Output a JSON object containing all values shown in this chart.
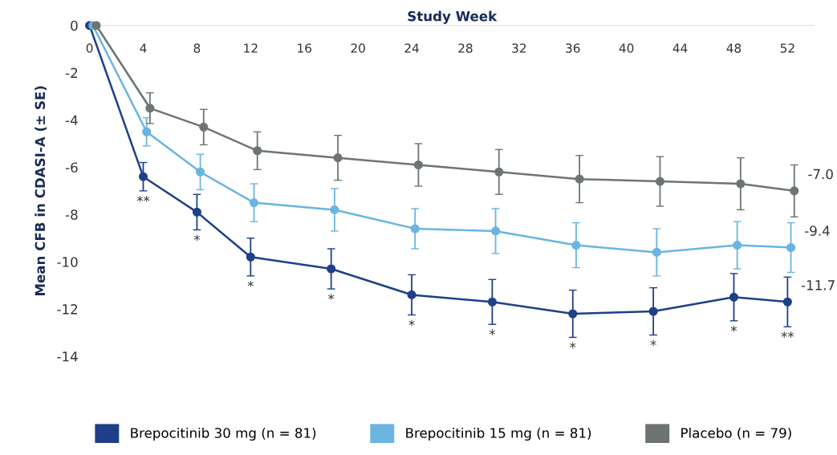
{
  "chart_data": {
    "type": "line",
    "xlabel": "Study Week",
    "ylabel": "Mean CFB in CDASI-A (± SE)",
    "xlim": [
      0,
      54
    ],
    "xticks": [
      0,
      4,
      8,
      12,
      16,
      20,
      24,
      28,
      32,
      36,
      40,
      44,
      48,
      52
    ],
    "ylim": [
      -14,
      0
    ],
    "yticks": [
      0,
      -2,
      -4,
      -6,
      -8,
      -10,
      -12,
      -14
    ],
    "series": [
      {
        "name": "Brepocitinib 30 mg (n = 81)",
        "color": "#1f3f8a",
        "x": [
          0,
          4,
          8,
          12,
          18,
          24,
          30,
          36,
          42,
          48,
          52
        ],
        "values": [
          0,
          -6.4,
          -7.9,
          -9.8,
          -10.3,
          -11.4,
          -11.7,
          -12.2,
          -12.1,
          -11.5,
          -11.7
        ],
        "errors": [
          null,
          0.6,
          0.75,
          0.8,
          0.85,
          0.85,
          0.95,
          1.0,
          1.0,
          1.0,
          1.05
        ]
      },
      {
        "name": "Brepocitinib 15 mg (n = 81)",
        "color": "#6ab4e0",
        "x": [
          0.25,
          4.25,
          8.25,
          12.25,
          18.25,
          24.25,
          30.25,
          36.25,
          42.25,
          48.25,
          52.25
        ],
        "values": [
          0,
          -4.5,
          -6.2,
          -7.5,
          -7.8,
          -8.6,
          -8.7,
          -9.3,
          -9.6,
          -9.3,
          -9.4
        ],
        "errors": [
          null,
          0.6,
          0.75,
          0.8,
          0.9,
          0.85,
          0.95,
          0.95,
          1.0,
          1.0,
          1.05
        ]
      },
      {
        "name": "Placebo (n = 79)",
        "color": "#6e7570",
        "x": [
          0.5,
          4.5,
          8.5,
          12.5,
          18.5,
          24.5,
          30.5,
          36.5,
          42.5,
          48.5,
          52.5
        ],
        "values": [
          0,
          -3.5,
          -4.3,
          -5.3,
          -5.6,
          -5.9,
          -6.2,
          -6.5,
          -6.6,
          -6.7,
          -7.0
        ],
        "errors": [
          null,
          0.65,
          0.75,
          0.8,
          0.95,
          0.9,
          0.95,
          1.0,
          1.05,
          1.1,
          1.1
        ]
      }
    ],
    "annotations": [
      {
        "text": "**",
        "x": 4,
        "y": -6.4
      },
      {
        "text": "*",
        "x": 8,
        "y": -7.9
      },
      {
        "text": "*",
        "x": 12,
        "y": -9.8
      },
      {
        "text": "*",
        "x": 18,
        "y": -10.3
      },
      {
        "text": "*",
        "x": 24,
        "y": -11.4
      },
      {
        "text": "*",
        "x": 30,
        "y": -11.7
      },
      {
        "text": "*",
        "x": 36,
        "y": -12.2
      },
      {
        "text": "*",
        "x": 42,
        "y": -12.1
      },
      {
        "text": "*",
        "x": 48,
        "y": -11.5
      },
      {
        "text": "**",
        "x": 52,
        "y": -11.7
      },
      {
        "text": "-7.0",
        "x": 52.5,
        "y": -7.0
      },
      {
        "text": "-9.4",
        "x": 52.25,
        "y": -9.4
      },
      {
        "text": "-11.7",
        "x": 52,
        "y": -11.7
      }
    ],
    "marker": "circle",
    "line_style": "solid",
    "grid": false,
    "legend": "bottom"
  }
}
